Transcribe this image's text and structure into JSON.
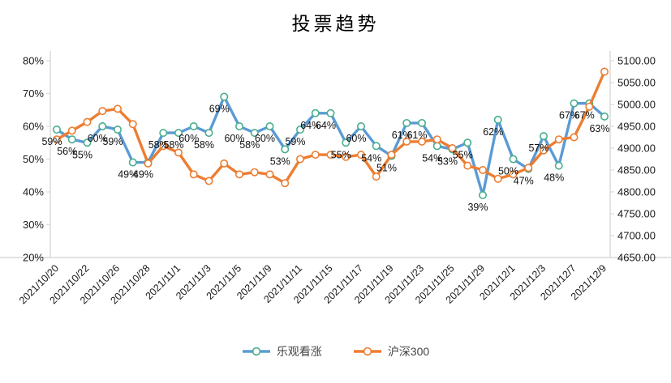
{
  "title": "投票趋势",
  "legend": {
    "items": [
      {
        "label": "乐观看涨",
        "line_color": "#5B9BD5",
        "marker_color": "#47AE8C"
      },
      {
        "label": "沪深300",
        "line_color": "#ED7D31",
        "marker_color": "#ED7D31"
      }
    ]
  },
  "colors": {
    "axis_line": "#D9D9D9",
    "text": "#1a1a1a",
    "data_label": "#111111",
    "marker_fill": "#ffffff"
  },
  "chart_data": {
    "type": "line",
    "title": "投票趋势",
    "num_points": 37,
    "x_tick_labels": [
      "2021/10/20",
      "2021/10/22",
      "2021/10/26",
      "2021/10/28",
      "2021/11/1",
      "2021/11/3",
      "2021/11/5",
      "2021/11/9",
      "2021/11/11",
      "2021/11/15",
      "2021/11/17",
      "2021/11/19",
      "2021/11/23",
      "2021/11/25",
      "2021/11/29",
      "2021/12/1",
      "2021/12/3",
      "2021/12/7",
      "2021/12/9"
    ],
    "x_tick_every": 2,
    "series": [
      {
        "name": "乐观看涨",
        "axis": "left",
        "unit": "%",
        "color": "#5B9BD5",
        "marker_color": "#47AE8C",
        "data_labels": true,
        "values": [
          59,
          56,
          55,
          60,
          59,
          49,
          49,
          58,
          58,
          60,
          58,
          69,
          60,
          58,
          60,
          53,
          59,
          64,
          64,
          55,
          60,
          54,
          51,
          61,
          61,
          54,
          53,
          55,
          39,
          62,
          50,
          47,
          57,
          48,
          67,
          67,
          63
        ]
      },
      {
        "name": "沪深300",
        "axis": "right",
        "unit": "",
        "color": "#ED7D31",
        "marker_color": "#ED7D31",
        "data_labels": false,
        "values": [
          4920,
          4940,
          4960,
          4985,
          4990,
          4955,
          4865,
          4905,
          4890,
          4840,
          4825,
          4865,
          4840,
          4845,
          4840,
          4820,
          4875,
          4885,
          4885,
          4880,
          4885,
          4835,
          4885,
          4915,
          4915,
          4920,
          4900,
          4860,
          4850,
          4830,
          4840,
          4855,
          4895,
          4920,
          4925,
          4995,
          5075
        ]
      }
    ],
    "left_axis": {
      "min": 20,
      "max": 80,
      "step": 10,
      "tick_labels": [
        "80%",
        "70%",
        "60%",
        "50%",
        "40%",
        "30%",
        "20%"
      ]
    },
    "right_axis": {
      "min": 4650,
      "max": 5100,
      "step": 50,
      "tick_labels": [
        "5100.00",
        "5050.00",
        "5000.00",
        "4950.00",
        "4900.00",
        "4850.00",
        "4800.00",
        "4750.00",
        "4700.00",
        "4650.00"
      ]
    },
    "grid": false,
    "legend_position": "bottom"
  }
}
